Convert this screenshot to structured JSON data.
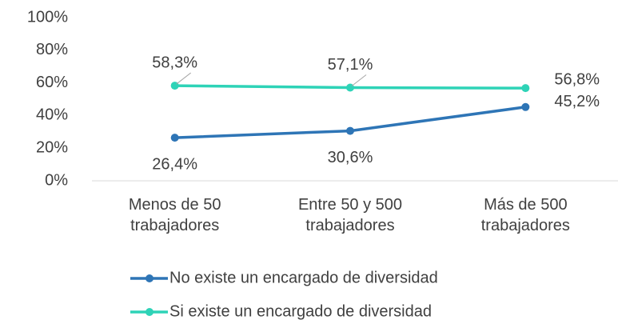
{
  "chart_data": {
    "type": "line",
    "categories": [
      "Menos de 50 trabajadores",
      "Entre 50 y 500 trabajadores",
      "Más de 500 trabajadores"
    ],
    "series": [
      {
        "name": "No existe un encargado de diversidad",
        "color": "#2e75b6",
        "values": [
          26.4,
          30.6,
          45.2
        ],
        "value_labels": [
          "26,4%",
          "30,6%",
          "45,2%"
        ]
      },
      {
        "name": "Si existe un encargado de diversidad",
        "color": "#2ed3b7",
        "values": [
          58.3,
          57.1,
          56.8
        ],
        "value_labels": [
          "58,3%",
          "57,1%",
          "56,8%"
        ]
      }
    ],
    "ylim": [
      0,
      100
    ],
    "yticks": [
      {
        "value": 0,
        "label": "0%"
      },
      {
        "value": 20,
        "label": "20%"
      },
      {
        "value": 40,
        "label": "40%"
      },
      {
        "value": 60,
        "label": "60%"
      },
      {
        "value": 80,
        "label": "80%"
      },
      {
        "value": 100,
        "label": "100%"
      }
    ],
    "grid": false,
    "legend": "bottom"
  }
}
